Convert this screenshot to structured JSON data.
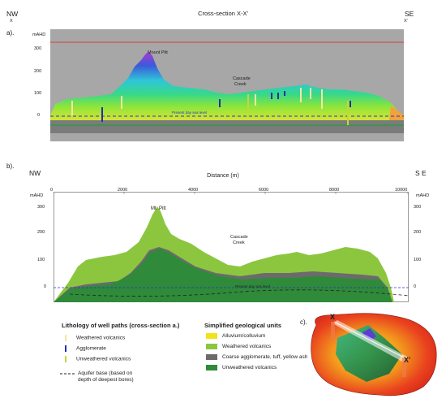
{
  "figure": {
    "panel_a": {
      "panel_label": "a).",
      "title": "Cross-section X-X'",
      "left_direction": "NW",
      "right_direction": "SE",
      "left_marker": "X",
      "right_marker": "X'",
      "unit": "mAHD",
      "y_ticks": [
        "300",
        "200",
        "100",
        "0"
      ],
      "peak_label": "Mount Pitt",
      "creek_label_line1": "Cascade",
      "creek_label_line2": "Creek",
      "sea_level_label": "Present day sea level"
    },
    "panel_b": {
      "panel_label": "b).",
      "left_direction": "NW",
      "right_direction": "S E",
      "xlabel": "Distance (m)",
      "x_ticks": [
        "0",
        "2000",
        "4000",
        "6000",
        "8000",
        "10000"
      ],
      "unit_left": "mAHD",
      "unit_right": "mAHD",
      "y_ticks": [
        "300",
        "200",
        "100",
        "0"
      ],
      "peak_label": "Mt. Pitt",
      "creek_label_line1": "Cascade",
      "creek_label_line2": "Creek",
      "sea_level_label": "Present day sea level"
    },
    "panel_c": {
      "panel_label": "c).",
      "marker_x": "X",
      "marker_x_prime": "X'"
    },
    "legend_lithology": {
      "title": "Lithology of well paths (cross-section a.)",
      "items": [
        {
          "label": "Weathered volcanics",
          "color": "#f3e7a0"
        },
        {
          "label": "Agglomerate",
          "color": "#1f2fb0"
        },
        {
          "label": "Unweathered volcanics",
          "color": "#c8d43a"
        }
      ],
      "aquifer_line1": "Aquifer base (based on",
      "aquifer_line2": "depth of deepest bores)"
    },
    "legend_units": {
      "title": "Simplified geological units",
      "items": [
        {
          "label": "Alluvium/colluvium",
          "color": "#f2e21a"
        },
        {
          "label": "Weathered volcanics",
          "color": "#8cc63f"
        },
        {
          "label": "Coarse agglomerate, tuff, yellow ash",
          "color": "#6b6b6b"
        },
        {
          "label": "Unweathered volcanics",
          "color": "#2f8a3a"
        }
      ]
    }
  }
}
